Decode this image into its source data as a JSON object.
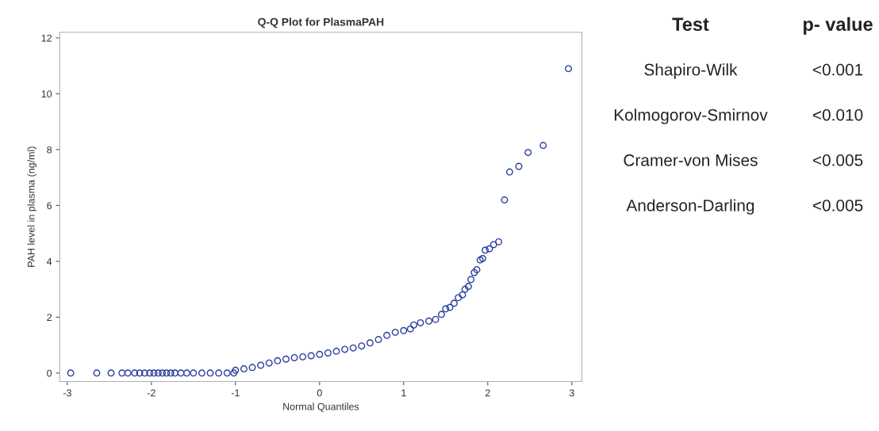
{
  "chart_data": [
    {
      "type": "scatter",
      "title": "Q-Q Plot for PlasmaPAH",
      "xlabel": "Normal Quantiles",
      "ylabel": "PAH level in plasma (ng/ml)",
      "x": [
        -2.96,
        -2.65,
        -2.48,
        -2.35,
        -2.28,
        -2.2,
        -2.14,
        -2.08,
        -2.02,
        -1.97,
        -1.92,
        -1.87,
        -1.82,
        -1.77,
        -1.72,
        -1.65,
        -1.58,
        -1.5,
        -1.4,
        -1.3,
        -1.2,
        -1.1,
        -1.02,
        -1.0,
        -0.9,
        -0.8,
        -0.7,
        -0.6,
        -0.5,
        -0.4,
        -0.3,
        -0.2,
        -0.1,
        0.0,
        0.1,
        0.2,
        0.3,
        0.4,
        0.5,
        0.6,
        0.7,
        0.8,
        0.9,
        1.0,
        1.08,
        1.12,
        1.2,
        1.3,
        1.38,
        1.45,
        1.5,
        1.55,
        1.6,
        1.65,
        1.7,
        1.73,
        1.77,
        1.8,
        1.84,
        1.87,
        1.91,
        1.94,
        1.97,
        2.02,
        2.07,
        2.13,
        2.2,
        2.26,
        2.37,
        2.48,
        2.66,
        2.96
      ],
      "series": [
        {
          "color": "#2b3f9e",
          "values": [
            0,
            0,
            0,
            0,
            0,
            0,
            0,
            0,
            0,
            0,
            0,
            0,
            0,
            0,
            0,
            0,
            0,
            0,
            0,
            0,
            0,
            0,
            0,
            0.1,
            0.15,
            0.2,
            0.28,
            0.36,
            0.44,
            0.5,
            0.55,
            0.58,
            0.62,
            0.67,
            0.72,
            0.78,
            0.85,
            0.9,
            0.97,
            1.08,
            1.2,
            1.35,
            1.46,
            1.52,
            1.58,
            1.72,
            1.8,
            1.86,
            1.92,
            2.1,
            2.3,
            2.35,
            2.5,
            2.7,
            2.8,
            3.0,
            3.1,
            3.35,
            3.6,
            3.7,
            4.05,
            4.1,
            4.4,
            4.45,
            4.6,
            4.7,
            6.2,
            7.2,
            7.4,
            7.9,
            8.15,
            10.9
          ]
        }
      ],
      "xlim": [
        -3.09,
        3.12
      ],
      "ylim": [
        -0.3,
        12.2
      ],
      "xticks": [
        -3,
        -2,
        -1,
        0,
        1,
        2,
        3
      ],
      "yticks": [
        0,
        2,
        4,
        6,
        8,
        10,
        12
      ],
      "marker": "circle",
      "grid": false
    },
    {
      "type": "other",
      "annotations": [
        "Test",
        "p- value",
        "Shapiro-Wilk",
        "<0.001",
        "Kolmogorov-Smirnov",
        "<0.010",
        "Cramer-von Mises",
        "<0.005",
        "Anderson-Darling",
        "<0.005"
      ]
    }
  ]
}
